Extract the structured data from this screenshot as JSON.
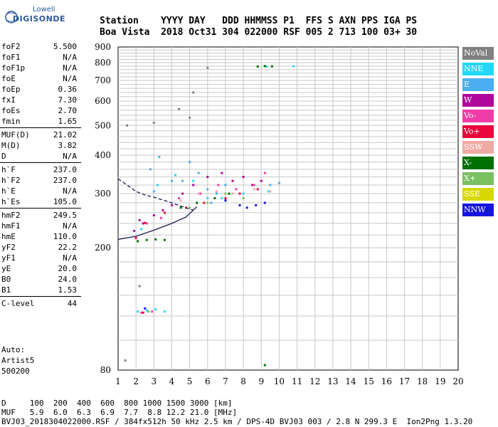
{
  "logo": {
    "line1": "Lowell",
    "line2": "DIGISONDE"
  },
  "header": {
    "line1": "Station    YYYY DAY   DDD HHMMSS P1  FFS S AXN PPS IGA PS",
    "line2": "Boa Vista  2018 Oct31 304 022000 RSF 005 2 713 100 03+ 30"
  },
  "params": {
    "group1": [
      {
        "k": "foF2",
        "v": "5.500"
      },
      {
        "k": "foF1",
        "v": "N/A"
      },
      {
        "k": "foF1p",
        "v": "N/A"
      },
      {
        "k": "foE",
        "v": "N/A"
      },
      {
        "k": "foEp",
        "v": "0.36"
      },
      {
        "k": "fxI",
        "v": "7.30"
      },
      {
        "k": "foEs",
        "v": "2.70"
      },
      {
        "k": "fmin",
        "v": "1.65"
      }
    ],
    "group2": [
      {
        "k": "MUF(D)",
        "v": "21.02"
      },
      {
        "k": "M(D)",
        "v": "3.82"
      },
      {
        "k": "D",
        "v": "N/A"
      }
    ],
    "group3": [
      {
        "k": "h`F",
        "v": "237.0"
      },
      {
        "k": "h`F2",
        "v": "237.0"
      },
      {
        "k": "h`E",
        "v": "N/A"
      },
      {
        "k": "h`Es",
        "v": "105.0"
      }
    ],
    "group4": [
      {
        "k": "hmF2",
        "v": "249.5"
      },
      {
        "k": "hmF1",
        "v": "N/A"
      },
      {
        "k": "hmE",
        "v": "110.0"
      },
      {
        "k": "yF2",
        "v": "22.2"
      },
      {
        "k": "yF1",
        "v": "N/A"
      },
      {
        "k": "yE",
        "v": "20.0"
      },
      {
        "k": "B0",
        "v": "24.0"
      },
      {
        "k": "B1",
        "v": "1.53"
      }
    ],
    "group5": [
      {
        "k": "C-level",
        "v": "44"
      }
    ]
  },
  "auto": {
    "line1": "Auto:",
    "line2": "Artist5",
    "line3": "500200"
  },
  "footer": {
    "line1": "D     100  200  400  600  800 1000 1500 3000 [km]",
    "line2": "MUF   5.9  6.0  6.3  6.9  7.7  8.8 12.2 21.0 [MHz]",
    "line3": "BVJ03_2018304022000.RSF / 384fx512h 50 kHz 2.5 km / DPS-4D BVJ03 003 / 2.8 N 299.3 E  Ion2Png 1.3.20"
  },
  "legend": [
    {
      "label": "NoVal",
      "color": "#808080"
    },
    {
      "label": "NNE",
      "color": "#22d8f8"
    },
    {
      "label": "E",
      "color": "#4aaef0"
    },
    {
      "label": "W",
      "color": "#b0089a"
    },
    {
      "label": "Vo-",
      "color": "#f03ca8"
    },
    {
      "label": "Vo+",
      "color": "#e8083a"
    },
    {
      "label": "SSW",
      "color": "#f0aaa6"
    },
    {
      "label": "X-",
      "color": "#007000"
    },
    {
      "label": "X+",
      "color": "#78c060"
    },
    {
      "label": "SSE",
      "color": "#d8d800"
    },
    {
      "label": "NNW",
      "color": "#1414e0"
    }
  ],
  "chart_data": {
    "type": "scatter",
    "xlabel": "",
    "ylabel": "",
    "xlim": [
      1,
      20
    ],
    "ylim": [
      80,
      900
    ],
    "xticks": [
      1,
      2,
      3,
      4,
      5,
      6,
      7,
      8,
      9,
      10,
      11,
      12,
      13,
      14,
      15,
      16,
      17,
      18,
      19,
      20
    ],
    "yticks": [
      80,
      200,
      300,
      400,
      500,
      600,
      700,
      800,
      900
    ],
    "grid": true,
    "log_y": true,
    "legend_placement": "right",
    "series": [
      {
        "name": "E",
        "points": [
          [
            3.0,
            305
          ],
          [
            4.0,
            330
          ],
          [
            5.0,
            380
          ],
          [
            5.5,
            350
          ],
          [
            6.0,
            310
          ],
          [
            6.5,
            300
          ],
          [
            7.0,
            320
          ],
          [
            2.8,
            360
          ],
          [
            3.3,
            395
          ],
          [
            4.6,
            330
          ],
          [
            9.5,
            320
          ],
          [
            10.0,
            325
          ],
          [
            6.2,
            280
          ]
        ]
      },
      {
        "name": "NNE",
        "points": [
          [
            2.3,
            230
          ],
          [
            3.2,
            320
          ],
          [
            4.2,
            345
          ],
          [
            5.2,
            330
          ],
          [
            6.0,
            290
          ],
          [
            6.8,
            290
          ],
          [
            8.0,
            300
          ],
          [
            9.4,
            305
          ],
          [
            2.1,
            124
          ],
          [
            2.6,
            125
          ],
          [
            3.1,
            126
          ],
          [
            3.6,
            124
          ],
          [
            9.3,
            777
          ],
          [
            10.8,
            779
          ]
        ]
      },
      {
        "name": "W",
        "points": [
          [
            2.4,
            240
          ],
          [
            3.0,
            255
          ],
          [
            3.5,
            265
          ],
          [
            4.0,
            275
          ],
          [
            4.6,
            300
          ],
          [
            5.2,
            320
          ],
          [
            6.0,
            340
          ],
          [
            6.8,
            350
          ],
          [
            7.4,
            330
          ],
          [
            8.0,
            340
          ],
          [
            8.5,
            320
          ],
          [
            9.0,
            330
          ],
          [
            2.2,
            246
          ],
          [
            1.9,
            227
          ]
        ]
      },
      {
        "name": "Vo-",
        "points": [
          [
            2.6,
            240
          ],
          [
            3.4,
            250
          ],
          [
            4.4,
            290
          ],
          [
            5.6,
            300
          ],
          [
            6.6,
            320
          ],
          [
            7.6,
            310
          ],
          [
            8.6,
            320
          ],
          [
            9.2,
            350
          ],
          [
            2.3,
            123
          ],
          [
            2.9,
            124
          ]
        ]
      },
      {
        "name": "Vo+",
        "points": [
          [
            2.5,
            241
          ],
          [
            3.6,
            260
          ],
          [
            4.8,
            270
          ],
          [
            5.8,
            280
          ],
          [
            7.0,
            290
          ],
          [
            7.8,
            300
          ],
          [
            8.8,
            310
          ],
          [
            2.0,
            215
          ],
          [
            2.4,
            123
          ]
        ]
      },
      {
        "name": "SSW",
        "points": [
          [
            4.5,
            285
          ],
          [
            5.5,
            300
          ],
          [
            6.5,
            305
          ],
          [
            7.4,
            300
          ],
          [
            8.6,
            310
          ],
          [
            9.5,
            305
          ]
        ]
      },
      {
        "name": "X-",
        "points": [
          [
            2.1,
            210
          ],
          [
            2.6,
            212
          ],
          [
            3.1,
            213
          ],
          [
            3.6,
            212
          ],
          [
            4.5,
            270
          ],
          [
            5.4,
            280
          ],
          [
            6.4,
            290
          ],
          [
            7.2,
            300
          ],
          [
            9.2,
            83
          ],
          [
            8.8,
            777
          ],
          [
            9.2,
            780
          ],
          [
            9.6,
            778
          ]
        ]
      },
      {
        "name": "X+",
        "points": [
          [
            5.0,
            270
          ],
          [
            6.0,
            280
          ],
          [
            7.0,
            300
          ],
          [
            8.0,
            290
          ],
          [
            2.7,
            124
          ]
        ]
      },
      {
        "name": "NNW",
        "points": [
          [
            7.8,
            275
          ],
          [
            8.2,
            270
          ],
          [
            8.7,
            275
          ],
          [
            9.2,
            280
          ],
          [
            7.0,
            285
          ],
          [
            2.5,
            127
          ]
        ]
      },
      {
        "name": "NoVal",
        "points": [
          [
            1.5,
            500
          ],
          [
            3.0,
            510
          ],
          [
            5.0,
            530
          ],
          [
            5.2,
            640
          ],
          [
            4.4,
            565
          ],
          [
            6.0,
            770
          ],
          [
            1.4,
            86
          ],
          [
            2.2,
            150
          ]
        ]
      }
    ],
    "curves": [
      {
        "name": "profile",
        "points": [
          [
            1.0,
            213
          ],
          [
            2.0,
            218
          ],
          [
            3.0,
            228
          ],
          [
            4.0,
            240
          ],
          [
            4.8,
            252
          ],
          [
            5.2,
            265
          ],
          [
            5.4,
            272
          ]
        ]
      },
      {
        "name": "extrapolation",
        "points": [
          [
            1.0,
            335
          ],
          [
            1.5,
            320
          ],
          [
            2.0,
            305
          ],
          [
            2.5,
            297
          ],
          [
            3.0,
            292
          ],
          [
            3.5,
            286
          ],
          [
            4.0,
            280
          ],
          [
            4.6,
            272
          ],
          [
            5.2,
            265
          ]
        ]
      }
    ]
  }
}
